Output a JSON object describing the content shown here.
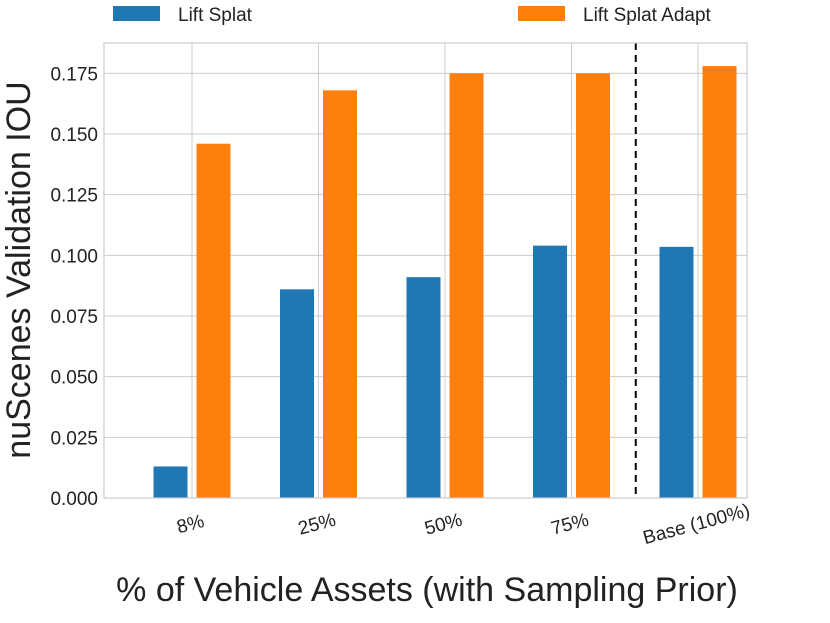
{
  "chart_data": {
    "type": "bar",
    "title": "",
    "xlabel": "% of Vehicle Assets (with Sampling Prior)",
    "ylabel": "nuScenes Validation IOU",
    "categories": [
      "8%",
      "25%",
      "50%",
      "75%",
      "Base (100%)"
    ],
    "series": [
      {
        "name": "Lift Splat",
        "color": "#1f77b4",
        "values": [
          0.013,
          0.086,
          0.091,
          0.104,
          0.1035
        ]
      },
      {
        "name": "Lift Splat Adapt",
        "color": "#ff7f0e",
        "values": [
          0.146,
          0.168,
          0.175,
          0.175,
          0.178
        ]
      }
    ],
    "ylim": [
      0,
      0.1875
    ],
    "yticks": [
      0.0,
      0.025,
      0.05,
      0.075,
      0.1,
      0.125,
      0.15,
      0.175
    ],
    "ytick_labels": [
      "0.000",
      "0.025",
      "0.050",
      "0.075",
      "0.100",
      "0.125",
      "0.150",
      "0.175"
    ],
    "grid": true,
    "legend_position": "top",
    "divider": {
      "style": "dashed",
      "color": "#000000",
      "between": [
        "75%",
        "Base (100%)"
      ]
    }
  }
}
